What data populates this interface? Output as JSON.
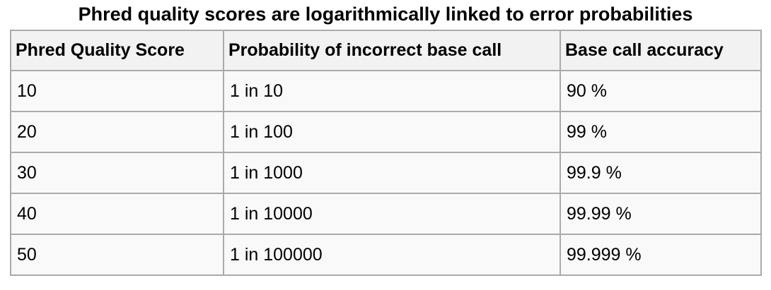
{
  "caption": "Phred quality scores are logarithmically linked to error probabilities",
  "headers": [
    "Phred Quality Score",
    "Probability of incorrect base call",
    "Base call accuracy"
  ],
  "rows": [
    [
      "10",
      "1 in 10",
      "90 %"
    ],
    [
      "20",
      "1 in 100",
      "99 %"
    ],
    [
      "30",
      "1 in 1000",
      "99.9 %"
    ],
    [
      "40",
      "1 in 10000",
      "99.99 %"
    ],
    [
      "50",
      "1 in 100000",
      "99.999 %"
    ]
  ]
}
